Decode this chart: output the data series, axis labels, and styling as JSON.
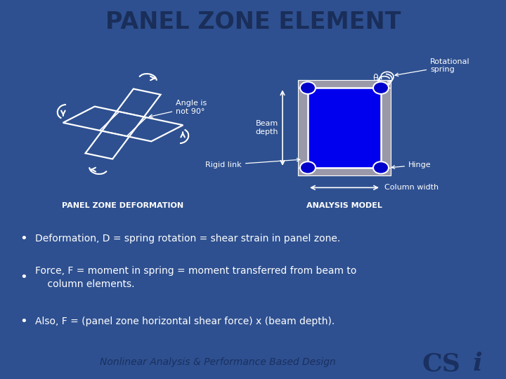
{
  "title": "PANEL ZONE ELEMENT",
  "bg_color": "#2E5090",
  "header_bg": "#B8B8C0",
  "footer_bg": "#B8B8C0",
  "title_color": "#1a2e5a",
  "text_color": "#FFFFFF",
  "dark_text": "#1a3060",
  "bullet_points": [
    "Deformation, D = spring rotation = shear strain in panel zone.",
    "Force, F = moment in spring = moment transferred from beam to\n    column elements.",
    "Also, F = (panel zone horizontal shear force) x (beam depth)."
  ],
  "label_left": "PANEL ZONE DEFORMATION",
  "label_right": "ANALYSIS MODEL",
  "footer_text": "Nonlinear Analysis & Performance Based Design",
  "blue_fill": "#0000EE",
  "node_color": "#0000CC",
  "gray_frame": "#9999AA"
}
